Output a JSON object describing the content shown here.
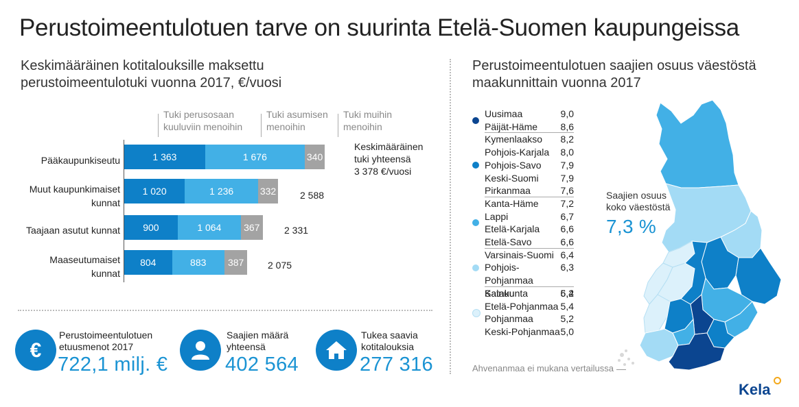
{
  "title": "Perustoimeentulotuen tarve on suurinta Etelä-Suomen kaupungeissa",
  "left_subtitle": [
    "Keskimääräinen kotitalouksille maksettu",
    "perustoimeentulotuki vuonna 2017, €/vuosi"
  ],
  "right_subtitle": [
    "Perustoimeentulotuen saajien osuus väestöstä",
    "maakunnittain vuonna 2017"
  ],
  "colors": {
    "dark": "#0e80c8",
    "light": "#42b0e6",
    "gray": "#a3a3a3",
    "accent": "#1a93d3",
    "map_darkest": "#0b4590",
    "map_dark": "#0e80c8",
    "map_mid": "#42b0e6",
    "map_light": "#a3dbf5",
    "map_lightest": "#dcf1fb"
  },
  "chart_data": {
    "type": "bar",
    "stacked": true,
    "orientation": "horizontal",
    "categories": [
      "Pääkaupunkiseutu",
      "Muut kaupunkimaiset kunnat",
      "Taajaan asutut kunnat",
      "Maaseutumaiset kunnat"
    ],
    "category_lines": [
      [
        "Pääkaupunkiseutu"
      ],
      [
        "Muut kaupunkimaiset",
        "kunnat"
      ],
      [
        "Taajaan asutut kunnat"
      ],
      [
        "Maaseutumaiset",
        "kunnat"
      ]
    ],
    "series": [
      {
        "name": "Tuki perusosaan kuuluviin menoihin",
        "name_lines": [
          "Tuki perusosaan",
          "kuuluviin menoihin"
        ],
        "values": [
          1363,
          1020,
          900,
          804
        ],
        "labels": [
          "1 363",
          "1 020",
          "900",
          "804"
        ]
      },
      {
        "name": "Tuki asumisen menoihin",
        "name_lines": [
          "Tuki asumisen",
          "menoihin"
        ],
        "values": [
          1676,
          1236,
          1064,
          883
        ],
        "labels": [
          "1 676",
          "1 236",
          "1 064",
          "883"
        ]
      },
      {
        "name": "Tuki muihin menoihin",
        "name_lines": [
          "Tuki muihin",
          "menoihin"
        ],
        "values": [
          340,
          332,
          367,
          387
        ],
        "labels": [
          "340",
          "332",
          "367",
          "387"
        ]
      }
    ],
    "totals": [
      3378,
      2588,
      2331,
      2075
    ],
    "total_labels": [
      "Keskimääräinen",
      "2 588",
      "2 331",
      "2 075"
    ],
    "total_note": [
      "tuki yhteensä",
      "3 378 €/vuosi"
    ]
  },
  "kpis": [
    {
      "icon": "euro-icon",
      "label_lines": [
        "Perustoimeentulotuen",
        "etuusmenot 2017"
      ],
      "value": "722,1 milj. €"
    },
    {
      "icon": "person-icon",
      "label_lines": [
        "Saajien määrä",
        "yhteensä"
      ],
      "value": "402 564"
    },
    {
      "icon": "house-icon",
      "label_lines": [
        "Tukea saavia",
        "kotitalouksia"
      ],
      "value": "277 316"
    }
  ],
  "legend_groups": [
    {
      "color_key": "map_darkest",
      "items": [
        [
          "Uusimaa",
          "9,0"
        ],
        [
          "Päijät-Häme",
          "8,6"
        ]
      ]
    },
    {
      "color_key": "map_dark",
      "items": [
        [
          "Kymenlaakso",
          "8,2"
        ],
        [
          "Pohjois-Karjala",
          "8,0"
        ],
        [
          "Pohjois-Savo",
          "7,9"
        ],
        [
          "Keski-Suomi",
          "7,9"
        ],
        [
          "Pirkanmaa",
          "7,6"
        ]
      ]
    },
    {
      "color_key": "map_mid",
      "items": [
        [
          "Kanta-Häme",
          "7,2"
        ],
        [
          "Lappi",
          "6,7"
        ],
        [
          "Etelä-Karjala",
          "6,6"
        ],
        [
          "Etelä-Savo",
          "6,6"
        ]
      ]
    },
    {
      "color_key": "map_light",
      "items": [
        [
          "Varsinais-Suomi",
          "6,4"
        ],
        [
          "Pohjois-Pohjanmaa",
          "6,3"
        ],
        [
          "Kainuu",
          "6,2"
        ]
      ]
    },
    {
      "color_key": "map_lightest",
      "items": [
        [
          "Satakunta",
          "5,4"
        ],
        [
          "Etelä-Pohjanmaa",
          "5,4"
        ],
        [
          "Pohjanmaa",
          "5,2"
        ],
        [
          "Keski-Pohjanmaa",
          "5,0"
        ]
      ]
    }
  ],
  "share": {
    "label_lines": [
      "Saajien osuus",
      "koko väestöstä"
    ],
    "value": "7,3 %"
  },
  "footnote": "Ahvenanmaa ei mukana vertailussa",
  "logo": "Kela"
}
